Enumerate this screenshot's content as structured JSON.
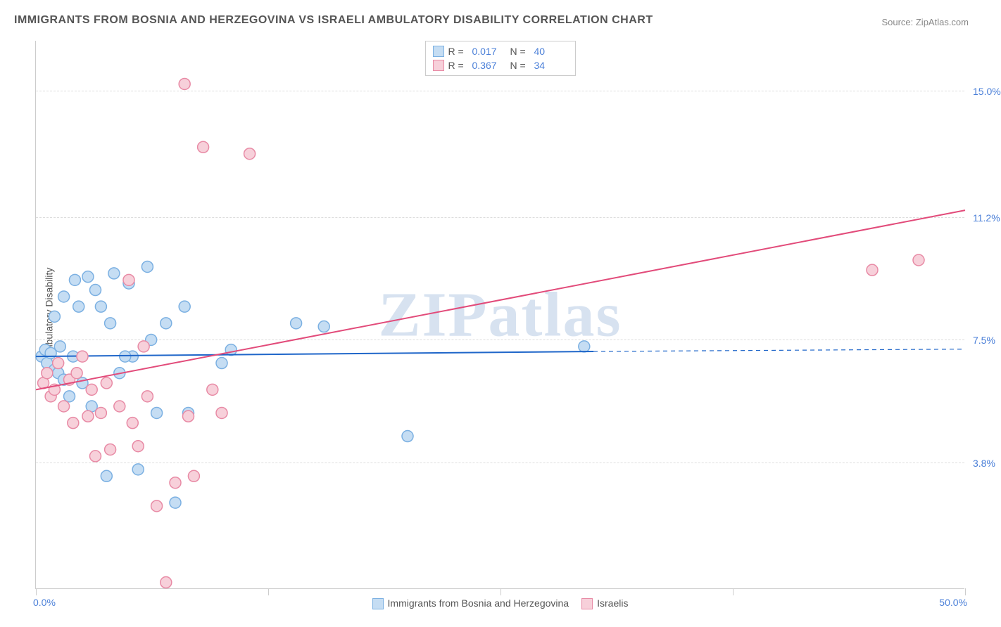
{
  "title": "IMMIGRANTS FROM BOSNIA AND HERZEGOVINA VS ISRAELI AMBULATORY DISABILITY CORRELATION CHART",
  "source_label": "Source: ",
  "source_name": "ZipAtlas.com",
  "watermark": "ZIPatlas",
  "ylabel": "Ambulatory Disability",
  "chart": {
    "type": "scatter",
    "xlim": [
      0,
      50
    ],
    "ylim": [
      0,
      16.5
    ],
    "x_min_label": "0.0%",
    "x_max_label": "50.0%",
    "xtick_positions": [
      0,
      12.5,
      25,
      37.5,
      50
    ],
    "gridlines": [
      {
        "y": 3.8,
        "label": "3.8%"
      },
      {
        "y": 7.5,
        "label": "7.5%"
      },
      {
        "y": 11.2,
        "label": "11.2%"
      },
      {
        "y": 15.0,
        "label": "15.0%"
      }
    ],
    "background_color": "#ffffff",
    "grid_color": "#dddddd",
    "axis_color": "#cccccc",
    "marker_radius": 8,
    "marker_stroke_width": 1.5,
    "line_width": 2,
    "dash_pattern": "6,5",
    "series": [
      {
        "id": "bosnia",
        "label": "Immigrants from Bosnia and Herzegovina",
        "fill": "#c5ddf3",
        "stroke": "#7bb0e2",
        "line_color": "#1f66c9",
        "R": "0.017",
        "N": "40",
        "trend": {
          "x1": 0,
          "y1": 7.0,
          "x2": 30,
          "y2": 7.15,
          "x_dash_to": 50,
          "y_dash_to": 7.22
        },
        "points": [
          [
            0.3,
            7.0
          ],
          [
            0.5,
            7.2
          ],
          [
            0.6,
            6.8
          ],
          [
            0.8,
            7.1
          ],
          [
            1.0,
            6.6
          ],
          [
            1.0,
            8.2
          ],
          [
            1.2,
            6.5
          ],
          [
            1.3,
            7.3
          ],
          [
            1.5,
            6.3
          ],
          [
            1.5,
            8.8
          ],
          [
            1.8,
            5.8
          ],
          [
            2.0,
            7.0
          ],
          [
            2.1,
            9.3
          ],
          [
            2.3,
            8.5
          ],
          [
            2.5,
            6.2
          ],
          [
            2.8,
            9.4
          ],
          [
            3.0,
            5.5
          ],
          [
            3.2,
            9.0
          ],
          [
            3.5,
            8.5
          ],
          [
            3.8,
            3.4
          ],
          [
            4.0,
            8.0
          ],
          [
            4.2,
            9.5
          ],
          [
            4.5,
            6.5
          ],
          [
            5.0,
            9.2
          ],
          [
            5.2,
            7.0
          ],
          [
            5.5,
            3.6
          ],
          [
            6.0,
            9.7
          ],
          [
            6.2,
            7.5
          ],
          [
            6.5,
            5.3
          ],
          [
            7.0,
            8.0
          ],
          [
            7.5,
            2.6
          ],
          [
            8.0,
            8.5
          ],
          [
            8.2,
            5.3
          ],
          [
            10.0,
            6.8
          ],
          [
            10.5,
            7.2
          ],
          [
            14.0,
            8.0
          ],
          [
            15.5,
            7.9
          ],
          [
            20.0,
            4.6
          ],
          [
            29.5,
            7.3
          ],
          [
            4.8,
            7.0
          ]
        ]
      },
      {
        "id": "israelis",
        "label": "Israelis",
        "fill": "#f7d0da",
        "stroke": "#e88aa5",
        "line_color": "#e24b7a",
        "R": "0.367",
        "N": "34",
        "trend": {
          "x1": 0,
          "y1": 6.0,
          "x2": 50,
          "y2": 11.4,
          "x_dash_to": null,
          "y_dash_to": null
        },
        "points": [
          [
            0.4,
            6.2
          ],
          [
            0.6,
            6.5
          ],
          [
            0.8,
            5.8
          ],
          [
            1.0,
            6.0
          ],
          [
            1.2,
            6.8
          ],
          [
            1.5,
            5.5
          ],
          [
            1.8,
            6.3
          ],
          [
            2.0,
            5.0
          ],
          [
            2.2,
            6.5
          ],
          [
            2.5,
            7.0
          ],
          [
            2.8,
            5.2
          ],
          [
            3.0,
            6.0
          ],
          [
            3.2,
            4.0
          ],
          [
            3.5,
            5.3
          ],
          [
            3.8,
            6.2
          ],
          [
            4.0,
            4.2
          ],
          [
            4.5,
            5.5
          ],
          [
            5.0,
            9.3
          ],
          [
            5.2,
            5.0
          ],
          [
            5.5,
            4.3
          ],
          [
            6.0,
            5.8
          ],
          [
            6.5,
            2.5
          ],
          [
            7.0,
            0.2
          ],
          [
            7.5,
            3.2
          ],
          [
            8.0,
            15.2
          ],
          [
            8.2,
            5.2
          ],
          [
            8.5,
            3.4
          ],
          [
            9.0,
            13.3
          ],
          [
            11.5,
            13.1
          ],
          [
            9.5,
            6.0
          ],
          [
            10.0,
            5.3
          ],
          [
            45.0,
            9.6
          ],
          [
            47.5,
            9.9
          ],
          [
            5.8,
            7.3
          ]
        ]
      }
    ]
  },
  "legend_top": {
    "r_prefix": "R =",
    "n_prefix": "N ="
  }
}
